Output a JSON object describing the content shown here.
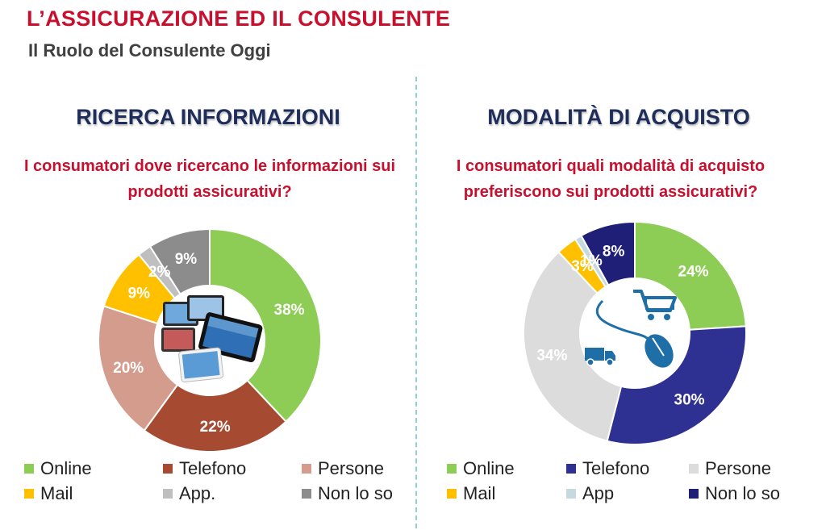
{
  "header": {
    "title": "L’ASSICURAZIONE ED IL CONSULENTE",
    "subtitle": "Il Ruolo del Consulente Oggi"
  },
  "chart_data": [
    {
      "type": "pie",
      "donut": true,
      "title": "RICERCA INFORMAZIONI",
      "subtitle": "I consumatori dove ricercano le informazioni sui prodotti assicurativi?",
      "center_image": "tablets-and-phones",
      "categories": [
        "Online",
        "Telefono",
        "Persone",
        "Mail",
        "App.",
        "Non lo so"
      ],
      "values": [
        38,
        22,
        20,
        9,
        2,
        9
      ],
      "labels": [
        "38%",
        "22%",
        "20%",
        "9%",
        "2%",
        "9%"
      ],
      "colors": [
        "#8dcc55",
        "#a64a32",
        "#d49c8c",
        "#ffc000",
        "#bfbfbf",
        "#8c8c8c"
      ],
      "legend": {
        "position": "bottom",
        "items": [
          "Online",
          "Telefono",
          "Persone",
          "Mail",
          "App.",
          "Non lo so"
        ]
      }
    },
    {
      "type": "pie",
      "donut": true,
      "title": "MODALITÀ DI ACQUISTO",
      "subtitle": "I consumatori quali modalità di acquisto preferiscono sui prodotti assicurativi?",
      "center_image": "shopping-cart-mouse-truck",
      "categories": [
        "Online",
        "Telefono",
        "Persone",
        "Mail",
        "App",
        "Non lo so"
      ],
      "values": [
        24,
        30,
        34,
        3,
        1,
        8
      ],
      "labels": [
        "24%",
        "30%",
        "34%",
        "3%",
        "1%",
        "8%"
      ],
      "colors": [
        "#8dcc55",
        "#2e3192",
        "#dcdcdc",
        "#ffc000",
        "#c5d9de",
        "#1f1f78"
      ],
      "legend": {
        "position": "bottom",
        "items": [
          "Online",
          "Telefono",
          "Persone",
          "Mail",
          "App",
          "Non lo so"
        ]
      }
    }
  ]
}
